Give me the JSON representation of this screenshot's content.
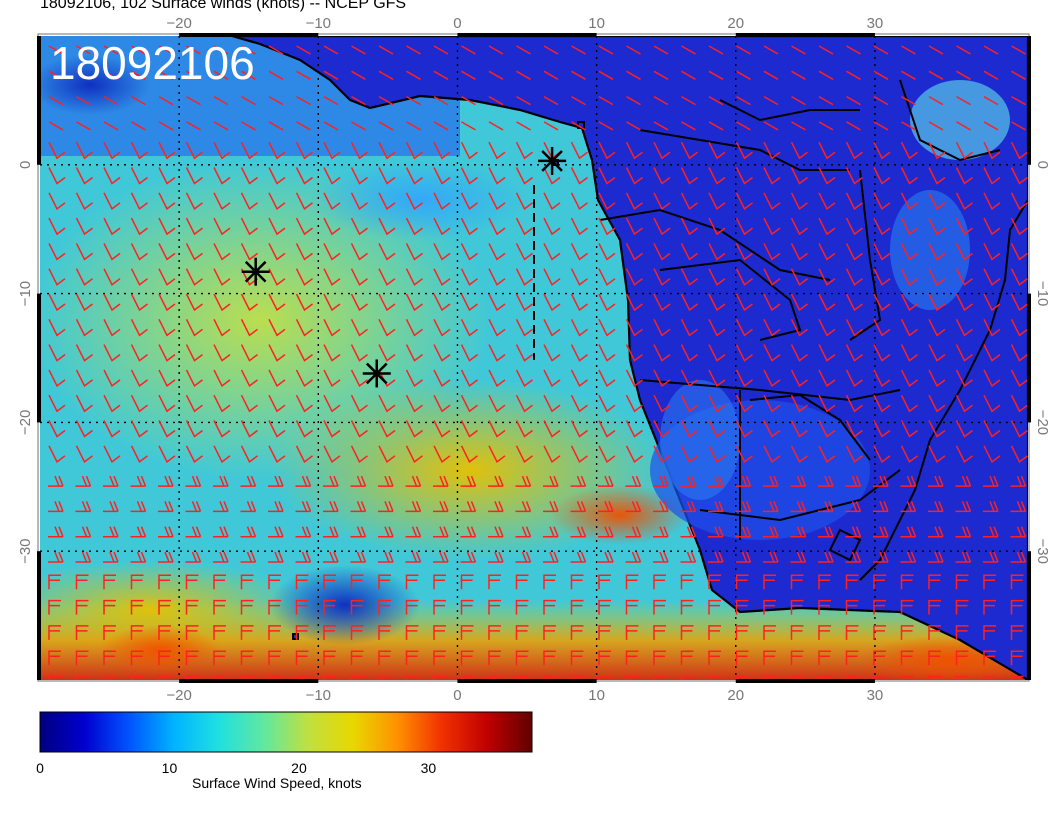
{
  "title": "18092106, 102 Surface winds (knots) -- NCEP GFS",
  "datetime_stamp": "18092106",
  "map": {
    "lon_range": [
      -30,
      41
    ],
    "lat_range": [
      -40,
      10
    ],
    "lon_ticks": [
      {
        "value": -20,
        "label": "−20"
      },
      {
        "value": -10,
        "label": "−10"
      },
      {
        "value": 0,
        "label": "0"
      },
      {
        "value": 10,
        "label": "10"
      },
      {
        "value": 20,
        "label": "20"
      },
      {
        "value": 30,
        "label": "30"
      }
    ],
    "lat_ticks": [
      {
        "value": 0,
        "label": "0"
      },
      {
        "value": -10,
        "label": "−10"
      },
      {
        "value": -20,
        "label": "−20"
      },
      {
        "value": -30,
        "label": "−30"
      }
    ],
    "graticule": "dotted",
    "barb_color": "#ff2020",
    "storm_markers": [
      {
        "lon": -14.5,
        "lat": -8.3
      },
      {
        "lon": -5.8,
        "lat": -16.2
      },
      {
        "lon": 6.8,
        "lat": 0.3
      }
    ]
  },
  "colorbar": {
    "title": "Surface Wind Speed, knots",
    "range": [
      0,
      38
    ],
    "ticks": [
      {
        "value": 0,
        "label": "0"
      },
      {
        "value": 10,
        "label": "10"
      },
      {
        "value": 20,
        "label": "20"
      },
      {
        "value": 30,
        "label": "30"
      }
    ],
    "colors": [
      "#00007f",
      "#0000d0",
      "#0055ff",
      "#00b4ff",
      "#20e0e0",
      "#60e8a0",
      "#c0e040",
      "#e8d800",
      "#ff9000",
      "#f03000",
      "#c00000",
      "#600000"
    ]
  }
}
